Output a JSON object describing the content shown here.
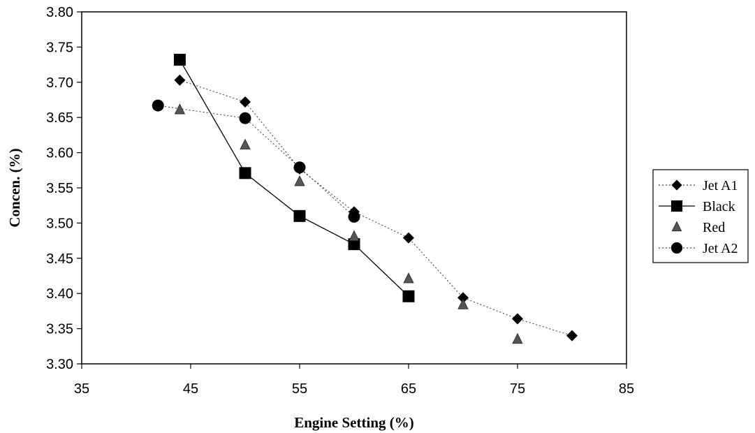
{
  "chart_data": {
    "type": "scatter",
    "title": "",
    "xlabel": "Engine Setting (%)",
    "ylabel": "Concen. (%)",
    "xlim": [
      35,
      85
    ],
    "ylim": [
      3.3,
      3.8
    ],
    "xticks": [
      "35",
      "45",
      "55",
      "65",
      "75",
      "85"
    ],
    "yticks": [
      "3.30",
      "3.35",
      "3.40",
      "3.45",
      "3.50",
      "3.55",
      "3.60",
      "3.65",
      "3.70",
      "3.75",
      "3.80"
    ],
    "grid": false,
    "legend_position": "right",
    "series": [
      {
        "name": "Jet A1",
        "marker": "diamond",
        "line": "dotted",
        "color": "#000000",
        "x": [
          44,
          50,
          55,
          60,
          65,
          70,
          75,
          80
        ],
        "y": [
          3.703,
          3.672,
          3.577,
          3.516,
          3.479,
          3.394,
          3.364,
          3.34
        ]
      },
      {
        "name": "Black",
        "marker": "square",
        "line": "solid",
        "color": "#000000",
        "x": [
          44,
          50,
          55,
          60,
          65
        ],
        "y": [
          3.732,
          3.571,
          3.51,
          3.47,
          3.396
        ]
      },
      {
        "name": "Red",
        "marker": "triangle",
        "line": "none",
        "color": "#555555",
        "x": [
          44,
          50,
          55,
          60,
          65,
          70,
          75
        ],
        "y": [
          3.661,
          3.611,
          3.559,
          3.481,
          3.421,
          3.384,
          3.335
        ]
      },
      {
        "name": "Jet A2",
        "marker": "circle",
        "line": "dotted",
        "color": "#000000",
        "x": [
          42,
          50,
          55,
          60
        ],
        "y": [
          3.667,
          3.649,
          3.579,
          3.509
        ]
      }
    ]
  }
}
